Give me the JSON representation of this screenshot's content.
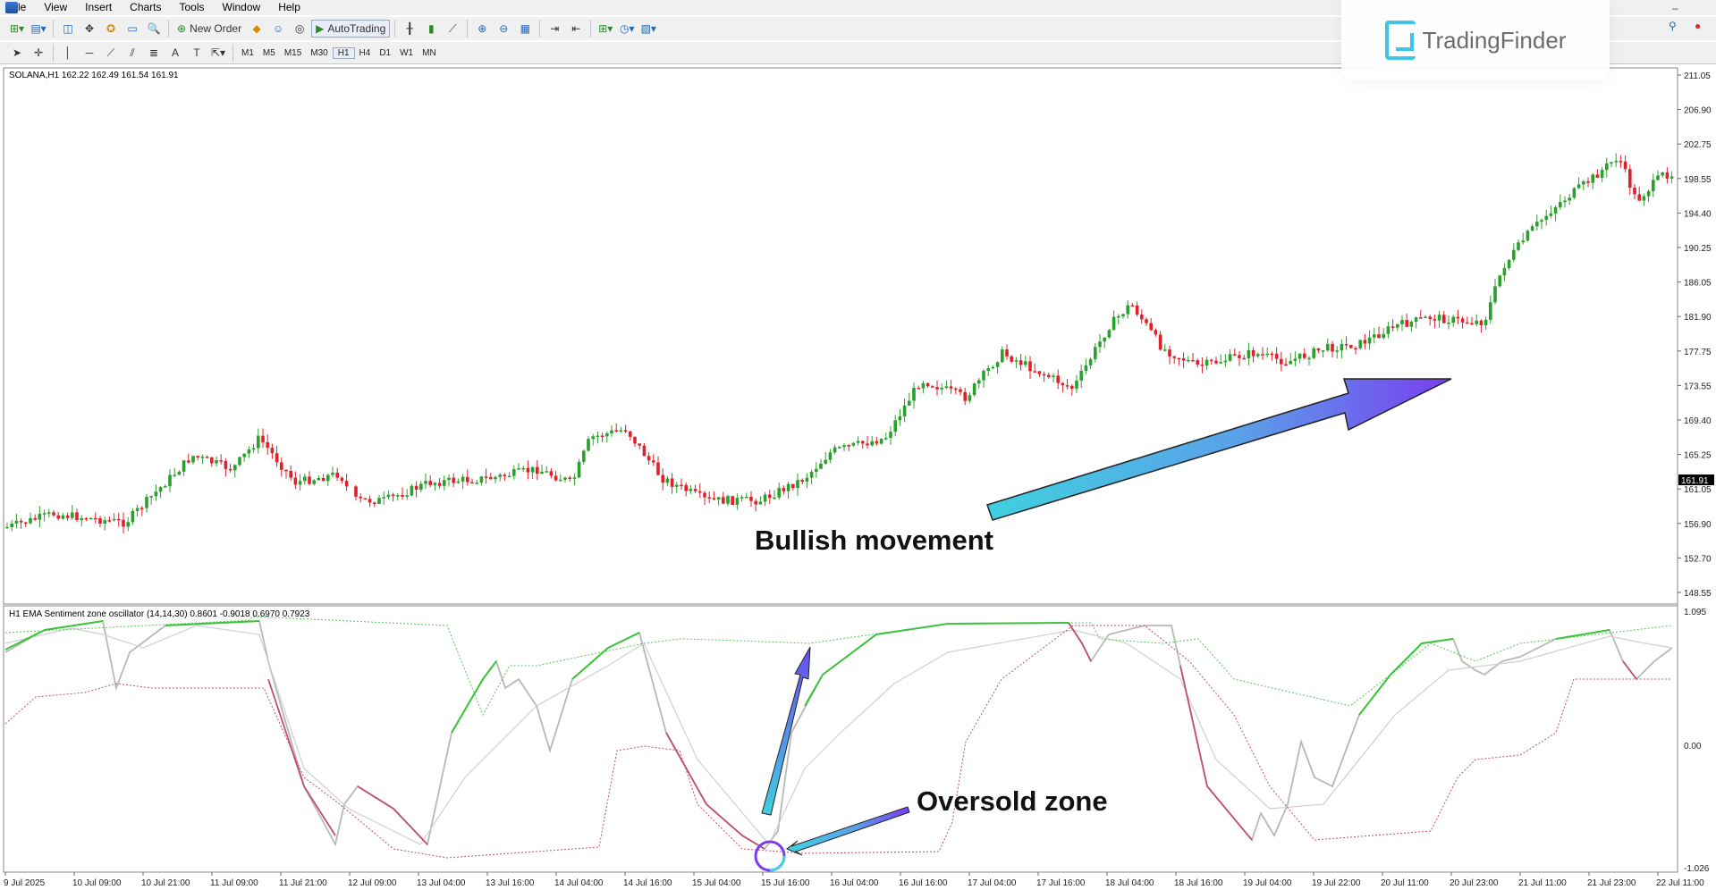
{
  "menu": [
    "File",
    "View",
    "Insert",
    "Charts",
    "Tools",
    "Window",
    "Help"
  ],
  "toolbar": {
    "new_order": "New Order",
    "auto_trading": "AutoTrading"
  },
  "timeframes": [
    "M1",
    "M5",
    "M15",
    "M30",
    "H1",
    "H4",
    "D1",
    "W1",
    "MN"
  ],
  "active_timeframe": "H1",
  "logo": {
    "text": "TradingFinder"
  },
  "chart": {
    "symbol_info": "SOLANA,H1  162.22 162.49 161.54 161.91",
    "current_price": "161.91",
    "price_axis": [
      "211.05",
      "206.90",
      "202.75",
      "198.55",
      "194.40",
      "190.25",
      "186.05",
      "181.90",
      "177.75",
      "173.55",
      "169.40",
      "165.25",
      "161.05",
      "156.90",
      "152.70",
      "148.55"
    ],
    "indicator_info": "H1 EMA Sentiment zone oscillator (14,14,30) 0.8601 -0.9018 0.6970 0.7923",
    "indicator_axis": [
      "1.095",
      "0.00",
      "-1.026"
    ],
    "time_axis": [
      "9 Jul 2025",
      "10 Jul 09:00",
      "10 Jul 21:00",
      "11 Jul 09:00",
      "11 Jul 21:00",
      "12 Jul 09:00",
      "13 Jul 04:00",
      "13 Jul 16:00",
      "14 Jul 04:00",
      "14 Jul 16:00",
      "15 Jul 04:00",
      "15 Jul 16:00",
      "16 Jul 04:00",
      "16 Jul 16:00",
      "17 Jul 04:00",
      "17 Jul 16:00",
      "18 Jul 04:00",
      "18 Jul 16:00",
      "19 Jul 04:00",
      "19 Jul 22:00",
      "20 Jul 11:00",
      "20 Jul 23:00",
      "21 Jul 11:00",
      "21 Jul 23:00",
      "22 Jul 11:00"
    ]
  },
  "annotations": {
    "bullish": "Bullish movement",
    "oversold": "Oversold zone"
  },
  "colors": {
    "bull": "#2ca02c",
    "bear": "#e0202a",
    "osc_green": "#3cc43c",
    "osc_red": "#c05070",
    "osc_gray": "#b0b0b0",
    "arrow_a": "#40d0e0",
    "arrow_b": "#7a3cf0"
  }
}
